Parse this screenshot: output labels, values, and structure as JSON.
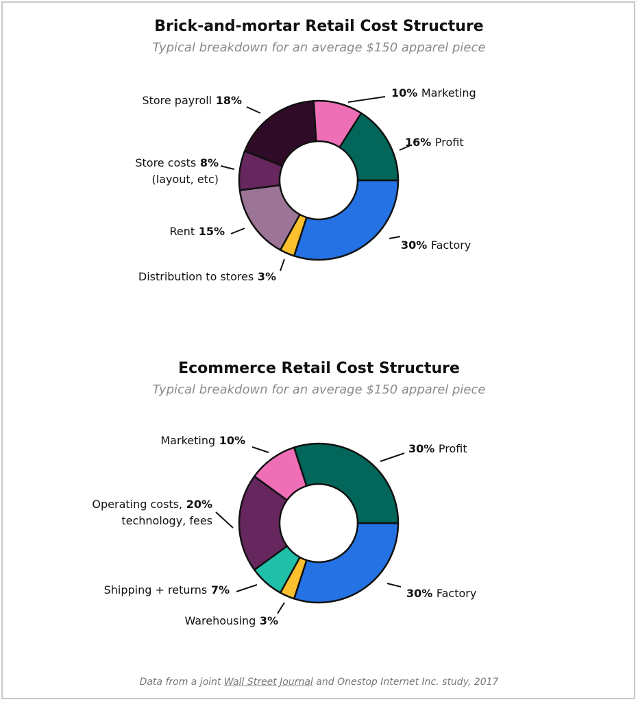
{
  "source": {
    "prefix": "Data from a joint",
    "link": "Wall Street Journal",
    "suffix": "and Onestop Internet Inc. study, 2017"
  },
  "chart_data": [
    {
      "type": "pie",
      "title": "Brick-and-mortar Retail Cost Structure",
      "subtitle": "Typical breakdown for an average $150 apparel piece",
      "slices": [
        {
          "value": 30,
          "pct_label": "30%",
          "name": "Factory",
          "lines": [
            "Factory"
          ],
          "color": "#2472e3",
          "pct_first": true
        },
        {
          "value": 3,
          "pct_label": "3%",
          "name": "Distribution to stores",
          "lines": [
            "Distribution to stores"
          ],
          "color": "#fbc02d",
          "pct_first": false
        },
        {
          "value": 15,
          "pct_label": "15%",
          "name": "Rent",
          "lines": [
            "Rent"
          ],
          "color": "#9c7496",
          "pct_first": false
        },
        {
          "value": 8,
          "pct_label": "8%",
          "name": "Store costs (layout, etc)",
          "lines": [
            "Store costs",
            "(layout, etc)"
          ],
          "color": "#65275d",
          "pct_first": false
        },
        {
          "value": 18,
          "pct_label": "18%",
          "name": "Store payroll",
          "lines": [
            "Store payroll"
          ],
          "color": "#2f0b27",
          "pct_first": false
        },
        {
          "value": 10,
          "pct_label": "10%",
          "name": "Marketing",
          "lines": [
            "Marketing"
          ],
          "color": "#ef6fb7",
          "pct_first": true
        },
        {
          "value": 16,
          "pct_label": "16%",
          "name": "Profit",
          "lines": [
            "Profit"
          ],
          "color": "#02665a",
          "pct_first": true
        }
      ]
    },
    {
      "type": "pie",
      "title": "Ecommerce Retail Cost Structure",
      "subtitle": "Typical breakdown for an average $150 apparel piece",
      "slices": [
        {
          "value": 30,
          "pct_label": "30%",
          "name": "Factory",
          "lines": [
            "Factory"
          ],
          "color": "#2472e3",
          "pct_first": true
        },
        {
          "value": 3,
          "pct_label": "3%",
          "name": "Warehousing",
          "lines": [
            "Warehousing"
          ],
          "color": "#fbc02d",
          "pct_first": false
        },
        {
          "value": 7,
          "pct_label": "7%",
          "name": "Shipping + returns",
          "lines": [
            "Shipping + returns"
          ],
          "color": "#1fbfa9",
          "pct_first": false
        },
        {
          "value": 20,
          "pct_label": "20%",
          "name": "Operating costs, technology, fees",
          "lines": [
            "Operating costs,",
            "technology, fees"
          ],
          "color": "#65275d",
          "pct_first": false
        },
        {
          "value": 10,
          "pct_label": "10%",
          "name": "Marketing",
          "lines": [
            "Marketing"
          ],
          "color": "#ef6fb7",
          "pct_first": false
        },
        {
          "value": 30,
          "pct_label": "30%",
          "name": "Profit",
          "lines": [
            "Profit"
          ],
          "color": "#02665a",
          "pct_first": true
        }
      ]
    }
  ]
}
